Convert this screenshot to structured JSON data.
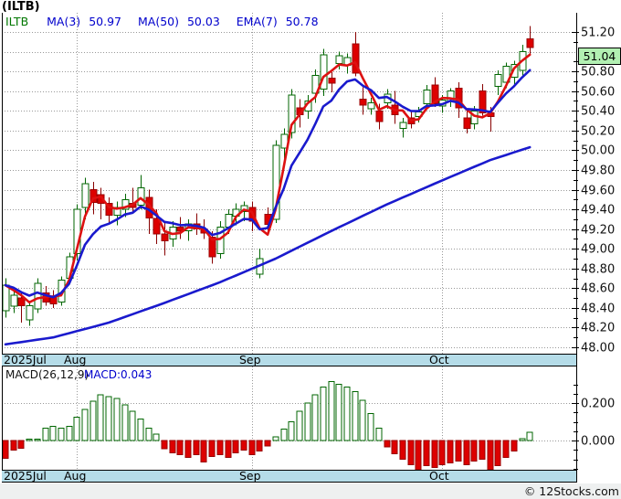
{
  "title": "(ILTB)",
  "legend": {
    "symbol": "ILTB",
    "items": [
      {
        "label": "MA(3)",
        "value": "50.97"
      },
      {
        "label": "MA(50)",
        "value": "50.03"
      },
      {
        "label": "EMA(7)",
        "value": "50.78"
      }
    ]
  },
  "macd_header": {
    "label": "MACD(26,12,9)",
    "value": "MACD:0.043"
  },
  "last_close_label": "51.04",
  "copyright": "© 12Stocks.com",
  "colors": {
    "up": "#006600",
    "up_fill": "#ffffff",
    "down": "#dd0000",
    "down_edge": "#990000",
    "wick_down": "#880000",
    "line_blue": "#1a1acd",
    "line_red": "#dd1111",
    "grid": "#999999",
    "axis_line": "#000000",
    "axis_text": "#111111",
    "band_bg": "#b5dce8",
    "close_box_bg": "#b2f0b2",
    "legend_blue": "#0000cc",
    "legend_green": "#007700"
  },
  "chart_data": [
    {
      "type": "candlestick",
      "title": "ILTB daily price",
      "ylim": [
        48.0,
        51.39
      ],
      "y_tick_step": 0.2,
      "y_tick_labels": [
        "51.20",
        "50.80",
        "50.60",
        "50.40",
        "50.20",
        "50.00",
        "49.80",
        "49.60",
        "49.40",
        "49.20",
        "49.00",
        "48.80",
        "48.60",
        "48.40",
        "48.20",
        "48.00"
      ],
      "hidden_tick": "51.00",
      "last_close": 51.04,
      "grid": "dotted",
      "months": [
        {
          "label": "2025Jul",
          "index": 0
        },
        {
          "label": "Aug",
          "index": 9
        },
        {
          "label": "Sep",
          "index": 31
        },
        {
          "label": "Oct",
          "index": 55
        }
      ],
      "candles": [
        [
          48.37,
          48.7,
          48.3,
          48.63
        ],
        [
          48.42,
          48.58,
          48.35,
          48.53
        ],
        [
          48.5,
          48.55,
          48.25,
          48.42
        ],
        [
          48.28,
          48.46,
          48.22,
          48.42
        ],
        [
          48.39,
          48.7,
          48.35,
          48.65
        ],
        [
          48.55,
          48.62,
          48.42,
          48.46
        ],
        [
          48.52,
          48.58,
          48.4,
          48.44
        ],
        [
          48.46,
          48.72,
          48.42,
          48.68
        ],
        [
          48.7,
          48.96,
          48.66,
          48.92
        ],
        [
          48.95,
          49.45,
          48.88,
          49.4
        ],
        [
          49.42,
          49.72,
          49.3,
          49.66
        ],
        [
          49.6,
          49.68,
          49.35,
          49.47
        ],
        [
          49.55,
          49.62,
          49.3,
          49.46
        ],
        [
          49.46,
          49.52,
          49.26,
          49.34
        ],
        [
          49.34,
          49.48,
          49.24,
          49.42
        ],
        [
          49.4,
          49.56,
          49.32,
          49.5
        ],
        [
          49.46,
          49.62,
          49.36,
          49.42
        ],
        [
          49.44,
          49.75,
          49.4,
          49.62
        ],
        [
          49.52,
          49.6,
          49.15,
          49.31
        ],
        [
          49.31,
          49.4,
          49.05,
          49.15
        ],
        [
          49.15,
          49.26,
          48.93,
          49.08
        ],
        [
          49.1,
          49.28,
          49.02,
          49.22
        ],
        [
          49.22,
          49.32,
          49.1,
          49.18
        ],
        [
          49.18,
          49.3,
          49.08,
          49.25
        ],
        [
          49.25,
          49.36,
          49.14,
          49.2
        ],
        [
          49.2,
          49.3,
          49.1,
          49.16
        ],
        [
          49.12,
          49.18,
          48.85,
          48.92
        ],
        [
          48.95,
          49.28,
          48.9,
          49.22
        ],
        [
          49.22,
          49.4,
          49.15,
          49.35
        ],
        [
          49.33,
          49.46,
          49.24,
          49.4
        ],
        [
          49.38,
          49.48,
          49.28,
          49.44
        ],
        [
          49.42,
          49.48,
          49.18,
          49.28
        ],
        [
          48.74,
          49.0,
          48.7,
          48.9
        ],
        [
          49.35,
          49.42,
          49.16,
          49.25
        ],
        [
          49.3,
          50.1,
          49.26,
          50.05
        ],
        [
          50.02,
          50.22,
          49.86,
          50.16
        ],
        [
          50.18,
          50.62,
          50.12,
          50.56
        ],
        [
          50.43,
          50.52,
          50.23,
          50.36
        ],
        [
          50.4,
          50.56,
          50.32,
          50.5
        ],
        [
          50.58,
          50.82,
          50.48,
          50.76
        ],
        [
          50.62,
          51.03,
          50.55,
          50.97
        ],
        [
          50.73,
          50.79,
          50.59,
          50.68
        ],
        [
          50.88,
          51.0,
          50.82,
          50.96
        ],
        [
          50.86,
          50.98,
          50.78,
          50.94
        ],
        [
          51.08,
          51.2,
          50.75,
          50.78
        ],
        [
          50.52,
          50.64,
          50.36,
          50.46
        ],
        [
          50.42,
          50.53,
          50.36,
          50.48
        ],
        [
          50.4,
          50.47,
          50.21,
          50.29
        ],
        [
          50.48,
          50.62,
          50.42,
          50.57
        ],
        [
          50.46,
          50.6,
          50.27,
          50.36
        ],
        [
          50.22,
          50.33,
          50.13,
          50.28
        ],
        [
          50.33,
          50.39,
          50.22,
          50.27
        ],
        [
          50.34,
          50.44,
          50.28,
          50.39
        ],
        [
          50.47,
          50.66,
          50.43,
          50.61
        ],
        [
          50.66,
          50.74,
          50.44,
          50.47
        ],
        [
          50.45,
          50.56,
          50.38,
          50.51
        ],
        [
          50.5,
          50.63,
          50.44,
          50.6
        ],
        [
          50.63,
          50.69,
          50.33,
          50.43
        ],
        [
          50.33,
          50.41,
          50.17,
          50.22
        ],
        [
          50.27,
          50.45,
          50.21,
          50.4
        ],
        [
          50.6,
          50.67,
          50.35,
          50.38
        ],
        [
          50.38,
          50.44,
          50.19,
          50.34
        ],
        [
          50.65,
          50.81,
          50.56,
          50.77
        ],
        [
          50.69,
          50.89,
          50.63,
          50.85
        ],
        [
          50.74,
          50.91,
          50.67,
          50.87
        ],
        [
          50.81,
          51.07,
          50.75,
          51.0
        ],
        [
          51.13,
          51.26,
          50.97,
          51.04
        ]
      ],
      "overlays": [
        {
          "name": "MA(3)",
          "style": "red",
          "period": 3,
          "derived_from": "close"
        },
        {
          "name": "EMA(7)",
          "style": "blue",
          "period": 7,
          "derived_from": "close"
        },
        {
          "name": "MA(50)",
          "style": "blue",
          "anchors": [
            [
              0,
              48.03
            ],
            [
              6,
              48.1
            ],
            [
              13,
              48.25
            ],
            [
              20,
              48.45
            ],
            [
              27,
              48.66
            ],
            [
              34,
              48.9
            ],
            [
              41,
              49.18
            ],
            [
              48,
              49.45
            ],
            [
              54,
              49.66
            ],
            [
              61,
              49.9
            ],
            [
              66,
              50.03
            ]
          ]
        }
      ]
    },
    {
      "type": "bar",
      "title": "MACD(26,12,9) histogram",
      "ylim": [
        -0.18,
        0.39
      ],
      "y_ticks": [
        {
          "label": "0.200",
          "value": 0.2
        },
        {
          "label": "0.000",
          "value": 0.0
        }
      ],
      "minor_tick_step": 0.05,
      "last_value": 0.043,
      "values": [
        -0.095,
        -0.05,
        -0.042,
        0.007,
        0.007,
        0.065,
        0.075,
        0.065,
        0.075,
        0.125,
        0.165,
        0.21,
        0.245,
        0.235,
        0.225,
        0.19,
        0.155,
        0.115,
        0.065,
        0.035,
        -0.045,
        -0.065,
        -0.075,
        -0.09,
        -0.075,
        -0.115,
        -0.085,
        -0.075,
        -0.09,
        -0.065,
        -0.05,
        -0.075,
        -0.055,
        -0.03,
        0.02,
        0.06,
        0.1,
        0.155,
        0.2,
        0.245,
        0.285,
        0.315,
        0.3,
        0.285,
        0.26,
        0.215,
        0.145,
        0.065,
        -0.035,
        -0.07,
        -0.1,
        -0.13,
        -0.155,
        -0.135,
        -0.145,
        -0.13,
        -0.12,
        -0.11,
        -0.13,
        -0.11,
        -0.1,
        -0.155,
        -0.135,
        -0.09,
        -0.055,
        0.01,
        0.043
      ],
      "months": [
        {
          "label": "2025Jul",
          "index": 0
        },
        {
          "label": "Aug",
          "index": 9
        },
        {
          "label": "Sep",
          "index": 31
        },
        {
          "label": "Oct",
          "index": 55
        }
      ]
    }
  ]
}
